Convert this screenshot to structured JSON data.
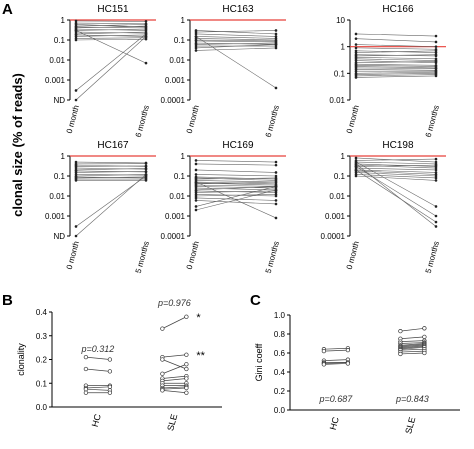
{
  "figure": {
    "ylabel_a": "clonal size (% of reads)"
  },
  "chart_data": [
    {
      "type": "line",
      "panel": "A",
      "title": "HC151",
      "y_ticks": [
        "1",
        "0.1",
        "0.01",
        "0.001",
        "ND"
      ],
      "x_ticks": [
        "0 month",
        "6 months"
      ],
      "threshold_line": "red",
      "segments": [
        {
          "from": 0.9,
          "to": 0.85
        },
        {
          "from": 0.7,
          "to": 0.65
        },
        {
          "from": 0.5,
          "to": 0.6
        },
        {
          "from": 0.45,
          "to": 0.4
        },
        {
          "from": 0.35,
          "to": 0.3
        },
        {
          "from": 0.3,
          "to": 0.35
        },
        {
          "from": 0.25,
          "to": 0.22
        },
        {
          "from": 0.2,
          "to": 0.25
        },
        {
          "from": 0.18,
          "to": 0.15
        },
        {
          "from": 0.15,
          "to": 0.18
        },
        {
          "from": 0.12,
          "to": 0.13
        },
        {
          "from": 0.1,
          "to": 0.11
        },
        {
          "from": 0.4,
          "to": 0.5
        },
        {
          "from": 0.6,
          "to": 0.45
        },
        {
          "from": 0.3,
          "to": 0.007
        },
        {
          "from": 0.0003,
          "to": 0.2
        },
        {
          "from": "ND",
          "to": 0.15
        }
      ]
    },
    {
      "type": "line",
      "panel": "A",
      "title": "HC163",
      "y_ticks": [
        "1",
        "0.1",
        "0.01",
        "0.001",
        "0.0001"
      ],
      "x_ticks": [
        "0 month",
        "6 months"
      ],
      "threshold_line": "red",
      "segments": [
        {
          "from": 0.3,
          "to": 0.2
        },
        {
          "from": 0.25,
          "to": 0.3
        },
        {
          "from": 0.2,
          "to": 0.15
        },
        {
          "from": 0.15,
          "to": 0.12
        },
        {
          "from": 0.12,
          "to": 0.1
        },
        {
          "from": 0.1,
          "to": 0.09
        },
        {
          "from": 0.09,
          "to": 0.08
        },
        {
          "from": 0.07,
          "to": 0.06
        },
        {
          "from": 0.06,
          "to": 0.07
        },
        {
          "from": 0.05,
          "to": 0.05
        },
        {
          "from": 0.04,
          "to": 0.06
        },
        {
          "from": 0.03,
          "to": 0.04
        },
        {
          "from": 0.15,
          "to": 0.0004
        }
      ]
    },
    {
      "type": "line",
      "panel": "A",
      "title": "HC166",
      "y_ticks": [
        "10",
        "1",
        "0.1",
        "0.01"
      ],
      "x_ticks": [
        "0 month",
        "6 months"
      ],
      "threshold_line": "red",
      "segments": [
        {
          "from": 3,
          "to": 2.5
        },
        {
          "from": 2,
          "to": 1.5
        },
        {
          "from": 1.2,
          "to": 1.0
        },
        {
          "from": 0.9,
          "to": 0.8
        },
        {
          "from": 0.7,
          "to": 0.6
        },
        {
          "from": 0.6,
          "to": 0.7
        },
        {
          "from": 0.5,
          "to": 0.45
        },
        {
          "from": 0.45,
          "to": 0.5
        },
        {
          "from": 0.4,
          "to": 0.35
        },
        {
          "from": 0.35,
          "to": 0.3
        },
        {
          "from": 0.3,
          "to": 0.25
        },
        {
          "from": 0.25,
          "to": 0.28
        },
        {
          "from": 0.22,
          "to": 0.2
        },
        {
          "from": 0.2,
          "to": 0.18
        },
        {
          "from": 0.18,
          "to": 0.16
        },
        {
          "from": 0.16,
          "to": 0.15
        },
        {
          "from": 0.14,
          "to": 0.13
        },
        {
          "from": 0.12,
          "to": 0.12
        },
        {
          "from": 0.1,
          "to": 0.11
        },
        {
          "from": 0.09,
          "to": 0.1
        },
        {
          "from": 0.08,
          "to": 0.09
        },
        {
          "from": 0.07,
          "to": 0.08
        }
      ]
    },
    {
      "type": "line",
      "panel": "A",
      "title": "HC167",
      "y_ticks": [
        "1",
        "0.1",
        "0.01",
        "0.001",
        "ND"
      ],
      "x_ticks": [
        "0 month",
        "5 months"
      ],
      "threshold_line": "red",
      "segments": [
        {
          "from": 0.5,
          "to": 0.45
        },
        {
          "from": 0.4,
          "to": 0.42
        },
        {
          "from": 0.35,
          "to": 0.3
        },
        {
          "from": 0.3,
          "to": 0.32
        },
        {
          "from": 0.25,
          "to": 0.22
        },
        {
          "from": 0.2,
          "to": 0.24
        },
        {
          "from": 0.18,
          "to": 0.16
        },
        {
          "from": 0.15,
          "to": 0.17
        },
        {
          "from": 0.12,
          "to": 0.11
        },
        {
          "from": 0.1,
          "to": 0.12
        },
        {
          "from": 0.09,
          "to": 0.08
        },
        {
          "from": 0.08,
          "to": 0.09
        },
        {
          "from": 0.07,
          "to": 0.07
        },
        {
          "from": 0.06,
          "to": 0.06
        },
        {
          "from": 0.0003,
          "to": 0.1
        },
        {
          "from": "ND",
          "to": 0.12
        }
      ]
    },
    {
      "type": "line",
      "panel": "A",
      "title": "HC169",
      "y_ticks": [
        "1",
        "0.1",
        "0.01",
        "0.001",
        "0.0001"
      ],
      "x_ticks": [
        "0 month",
        "5 months"
      ],
      "threshold_line": "red",
      "segments": [
        {
          "from": 0.6,
          "to": 0.5
        },
        {
          "from": 0.4,
          "to": 0.35
        },
        {
          "from": 0.2,
          "to": 0.15
        },
        {
          "from": 0.12,
          "to": 0.1
        },
        {
          "from": 0.09,
          "to": 0.07
        },
        {
          "from": 0.08,
          "to": 0.06
        },
        {
          "from": 0.07,
          "to": 0.08
        },
        {
          "from": 0.06,
          "to": 0.05
        },
        {
          "from": 0.05,
          "to": 0.04
        },
        {
          "from": 0.045,
          "to": 0.035
        },
        {
          "from": 0.04,
          "to": 0.05
        },
        {
          "from": 0.035,
          "to": 0.03
        },
        {
          "from": 0.03,
          "to": 0.025
        },
        {
          "from": 0.025,
          "to": 0.02
        },
        {
          "from": 0.02,
          "to": 0.03
        },
        {
          "from": 0.018,
          "to": 0.015
        },
        {
          "from": 0.015,
          "to": 0.018
        },
        {
          "from": 0.012,
          "to": 0.01
        },
        {
          "from": 0.01,
          "to": 0.012
        },
        {
          "from": 0.008,
          "to": 0.006
        },
        {
          "from": 0.006,
          "to": 0.004
        },
        {
          "from": 0.003,
          "to": 0.03
        },
        {
          "from": 0.002,
          "to": 0.02
        },
        {
          "from": 0.05,
          "to": 0.0008
        }
      ]
    },
    {
      "type": "line",
      "panel": "A",
      "title": "HC198",
      "y_ticks": [
        "1",
        "0.1",
        "0.01",
        "0.001",
        "0.0001"
      ],
      "x_ticks": [
        "0 month",
        "5 months"
      ],
      "threshold_line": "red",
      "segments": [
        {
          "from": 0.8,
          "to": 0.5
        },
        {
          "from": 0.6,
          "to": 0.7
        },
        {
          "from": 0.5,
          "to": 0.4
        },
        {
          "from": 0.4,
          "to": 0.3
        },
        {
          "from": 0.35,
          "to": 0.25
        },
        {
          "from": 0.3,
          "to": 0.35
        },
        {
          "from": 0.25,
          "to": 0.2
        },
        {
          "from": 0.2,
          "to": 0.15
        },
        {
          "from": 0.18,
          "to": 0.12
        },
        {
          "from": 0.15,
          "to": 0.1
        },
        {
          "from": 0.12,
          "to": 0.08
        },
        {
          "from": 0.1,
          "to": 0.06
        },
        {
          "from": 0.5,
          "to": 0.003
        },
        {
          "from": 0.3,
          "to": 0.001
        },
        {
          "from": 0.2,
          "to": 0.0005
        },
        {
          "from": 0.4,
          "to": 0.0003
        }
      ]
    },
    {
      "type": "line",
      "panel": "B",
      "ylabel": "clonality",
      "ylim": [
        0.0,
        0.4
      ],
      "y_ticks": [
        "0.0",
        "0.1",
        "0.2",
        "0.3",
        "0.4"
      ],
      "groups": [
        {
          "name": "HC",
          "p_value": "p=0.312",
          "pairs": [
            [
              0.21,
              0.2
            ],
            [
              0.16,
              0.15
            ],
            [
              0.09,
              0.09
            ],
            [
              0.08,
              0.085
            ],
            [
              0.075,
              0.07
            ],
            [
              0.06,
              0.06
            ]
          ]
        },
        {
          "name": "SLE",
          "p_value": "p=0.976",
          "pairs": [
            [
              0.33,
              0.38
            ],
            [
              0.21,
              0.22
            ],
            [
              0.2,
              0.16
            ],
            [
              0.14,
              0.18
            ],
            [
              0.12,
              0.13
            ],
            [
              0.11,
              0.12
            ],
            [
              0.1,
              0.1
            ],
            [
              0.09,
              0.09
            ],
            [
              0.08,
              0.085
            ],
            [
              0.075,
              0.08
            ],
            [
              0.07,
              0.06
            ]
          ]
        }
      ],
      "annotations": [
        "*",
        "**"
      ]
    },
    {
      "type": "line",
      "panel": "C",
      "ylabel": "Gini coeff",
      "ylim": [
        0.0,
        1.0
      ],
      "y_ticks": [
        "0.0",
        "0.2",
        "0.4",
        "0.6",
        "0.8",
        "1.0"
      ],
      "groups": [
        {
          "name": "HC",
          "p_value": "p=0.687",
          "pairs": [
            [
              0.64,
              0.65
            ],
            [
              0.62,
              0.63
            ],
            [
              0.52,
              0.53
            ],
            [
              0.5,
              0.5
            ],
            [
              0.49,
              0.5
            ],
            [
              0.48,
              0.49
            ]
          ]
        },
        {
          "name": "SLE",
          "p_value": "p=0.843",
          "pairs": [
            [
              0.83,
              0.86
            ],
            [
              0.75,
              0.77
            ],
            [
              0.72,
              0.73
            ],
            [
              0.7,
              0.71
            ],
            [
              0.68,
              0.7
            ],
            [
              0.67,
              0.69
            ],
            [
              0.66,
              0.68
            ],
            [
              0.65,
              0.67
            ],
            [
              0.64,
              0.66
            ],
            [
              0.63,
              0.64
            ],
            [
              0.61,
              0.62
            ],
            [
              0.59,
              0.6
            ]
          ]
        }
      ]
    }
  ],
  "panel_labels": [
    "A",
    "B",
    "C"
  ]
}
